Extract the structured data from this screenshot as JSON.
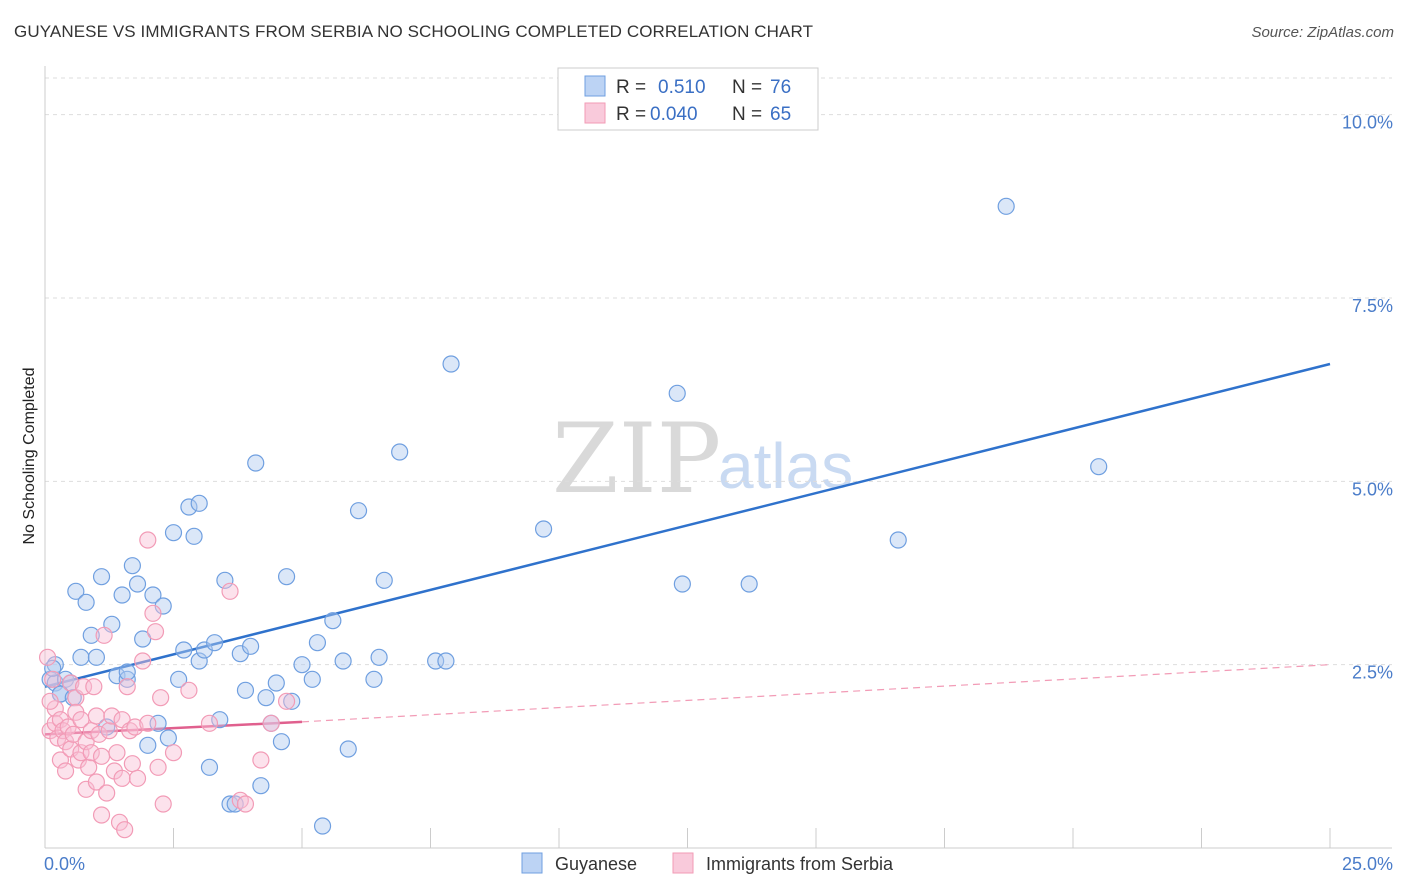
{
  "header": {
    "title": "GUYANESE VS IMMIGRANTS FROM SERBIA NO SCHOOLING COMPLETED CORRELATION CHART",
    "source": "Source: ZipAtlas.com"
  },
  "watermark": {
    "zip": "ZIP",
    "atlas": "atlas"
  },
  "legend_box": {
    "rows": [
      {
        "r_label": "R =",
        "r_value": "0.510",
        "n_label": "N =",
        "n_value": "76",
        "color": "#6f9fe0"
      },
      {
        "r_label": "R =",
        "r_value": "0.040",
        "n_label": "N =",
        "n_value": "65",
        "color": "#f29bb6"
      }
    ]
  },
  "chart_data": {
    "type": "scatter",
    "title": "GUYANESE VS IMMIGRANTS FROM SERBIA NO SCHOOLING COMPLETED CORRELATION CHART",
    "xlabel": "",
    "ylabel": "No Schooling Completed",
    "xlim": [
      0,
      25
    ],
    "ylim": [
      0,
      10.5
    ],
    "x_tick_labels": [
      "0.0%",
      "25.0%"
    ],
    "y_ticks": [
      2.5,
      5.0,
      7.5,
      10.0
    ],
    "y_tick_labels": [
      "2.5%",
      "5.0%",
      "7.5%",
      "10.0%"
    ],
    "grid": true,
    "legend_position": "top-center",
    "series": [
      {
        "name": "Guyanese",
        "color": "#6f9fe0",
        "line_color": "#2f72cc",
        "r": 0.51,
        "n": 76,
        "trend": {
          "x": [
            0,
            25
          ],
          "y": [
            2.2,
            6.6
          ]
        },
        "points": [
          [
            0.1,
            2.3
          ],
          [
            0.2,
            2.25
          ],
          [
            0.2,
            2.5
          ],
          [
            0.3,
            2.1
          ],
          [
            0.4,
            2.3
          ],
          [
            0.5,
            2.25
          ],
          [
            0.6,
            3.5
          ],
          [
            0.7,
            2.6
          ],
          [
            0.8,
            3.35
          ],
          [
            0.9,
            2.9
          ],
          [
            1.0,
            2.6
          ],
          [
            1.1,
            3.7
          ],
          [
            1.2,
            1.65
          ],
          [
            1.3,
            3.05
          ],
          [
            1.4,
            2.35
          ],
          [
            1.5,
            3.45
          ],
          [
            1.6,
            2.3
          ],
          [
            1.6,
            2.4
          ],
          [
            1.7,
            3.85
          ],
          [
            1.8,
            3.6
          ],
          [
            1.9,
            2.85
          ],
          [
            2.0,
            1.4
          ],
          [
            2.1,
            3.45
          ],
          [
            2.2,
            1.7
          ],
          [
            2.3,
            3.3
          ],
          [
            2.4,
            1.5
          ],
          [
            2.5,
            4.3
          ],
          [
            2.6,
            2.3
          ],
          [
            2.7,
            2.7
          ],
          [
            2.8,
            4.65
          ],
          [
            2.9,
            4.25
          ],
          [
            3.0,
            4.7
          ],
          [
            3.0,
            2.55
          ],
          [
            3.1,
            2.7
          ],
          [
            3.2,
            1.1
          ],
          [
            3.3,
            2.8
          ],
          [
            3.4,
            1.75
          ],
          [
            3.5,
            3.65
          ],
          [
            3.6,
            0.6
          ],
          [
            3.7,
            0.6
          ],
          [
            3.8,
            2.65
          ],
          [
            3.9,
            2.15
          ],
          [
            4.0,
            2.75
          ],
          [
            4.1,
            5.25
          ],
          [
            4.2,
            0.85
          ],
          [
            4.3,
            2.05
          ],
          [
            4.4,
            1.7
          ],
          [
            4.5,
            2.25
          ],
          [
            4.6,
            1.45
          ],
          [
            4.7,
            3.7
          ],
          [
            4.8,
            2.0
          ],
          [
            5.0,
            2.5
          ],
          [
            5.2,
            2.3
          ],
          [
            5.3,
            2.8
          ],
          [
            5.4,
            0.3
          ],
          [
            5.6,
            3.1
          ],
          [
            5.8,
            2.55
          ],
          [
            5.9,
            1.35
          ],
          [
            6.1,
            4.6
          ],
          [
            6.4,
            2.3
          ],
          [
            6.5,
            2.6
          ],
          [
            6.6,
            3.65
          ],
          [
            6.9,
            5.4
          ],
          [
            7.6,
            2.55
          ],
          [
            7.8,
            2.55
          ],
          [
            7.9,
            6.6
          ],
          [
            9.7,
            4.35
          ],
          [
            12.3,
            6.2
          ],
          [
            12.4,
            3.6
          ],
          [
            13.7,
            3.6
          ],
          [
            16.6,
            4.2
          ],
          [
            18.7,
            8.75
          ],
          [
            20.5,
            5.2
          ],
          [
            0.3,
            2.1
          ],
          [
            0.15,
            2.45
          ],
          [
            0.55,
            2.05
          ]
        ]
      },
      {
        "name": "Immigrants from Serbia",
        "color": "#f29bb6",
        "line_color": "#e0608e",
        "r": 0.04,
        "n": 65,
        "trend": {
          "x": [
            0,
            5.0
          ],
          "y": [
            1.55,
            1.72
          ]
        },
        "trend_ext": {
          "x": [
            5.0,
            25
          ],
          "y": [
            1.72,
            2.5
          ]
        },
        "points": [
          [
            0.05,
            2.6
          ],
          [
            0.1,
            1.6
          ],
          [
            0.15,
            2.3
          ],
          [
            0.2,
            1.9
          ],
          [
            0.2,
            1.7
          ],
          [
            0.25,
            1.5
          ],
          [
            0.3,
            1.75
          ],
          [
            0.3,
            1.2
          ],
          [
            0.35,
            1.6
          ],
          [
            0.4,
            1.05
          ],
          [
            0.4,
            1.45
          ],
          [
            0.45,
            1.65
          ],
          [
            0.5,
            1.35
          ],
          [
            0.5,
            2.25
          ],
          [
            0.55,
            1.55
          ],
          [
            0.6,
            2.05
          ],
          [
            0.6,
            1.85
          ],
          [
            0.65,
            1.2
          ],
          [
            0.7,
            1.3
          ],
          [
            0.7,
            1.75
          ],
          [
            0.75,
            2.2
          ],
          [
            0.8,
            0.8
          ],
          [
            0.8,
            1.45
          ],
          [
            0.85,
            1.1
          ],
          [
            0.9,
            1.6
          ],
          [
            0.9,
            1.3
          ],
          [
            0.95,
            2.2
          ],
          [
            1.0,
            0.9
          ],
          [
            1.0,
            1.8
          ],
          [
            1.05,
            1.55
          ],
          [
            1.1,
            0.45
          ],
          [
            1.1,
            1.25
          ],
          [
            1.15,
            2.9
          ],
          [
            1.2,
            0.75
          ],
          [
            1.25,
            1.6
          ],
          [
            1.3,
            1.8
          ],
          [
            1.35,
            1.05
          ],
          [
            1.4,
            1.3
          ],
          [
            1.45,
            0.35
          ],
          [
            1.5,
            1.75
          ],
          [
            1.5,
            0.95
          ],
          [
            1.55,
            0.25
          ],
          [
            1.6,
            2.2
          ],
          [
            1.65,
            1.6
          ],
          [
            1.7,
            1.15
          ],
          [
            1.75,
            1.65
          ],
          [
            1.8,
            0.95
          ],
          [
            1.9,
            2.55
          ],
          [
            2.0,
            1.7
          ],
          [
            2.1,
            3.2
          ],
          [
            2.15,
            2.95
          ],
          [
            2.2,
            1.1
          ],
          [
            2.25,
            2.05
          ],
          [
            2.3,
            0.6
          ],
          [
            2.5,
            1.3
          ],
          [
            2.8,
            2.15
          ],
          [
            3.2,
            1.7
          ],
          [
            3.6,
            3.5
          ],
          [
            4.2,
            1.2
          ],
          [
            4.4,
            1.7
          ],
          [
            4.7,
            2.0
          ],
          [
            2.0,
            4.2
          ],
          [
            3.8,
            0.65
          ],
          [
            3.9,
            0.6
          ],
          [
            0.1,
            2.0
          ]
        ]
      }
    ]
  }
}
